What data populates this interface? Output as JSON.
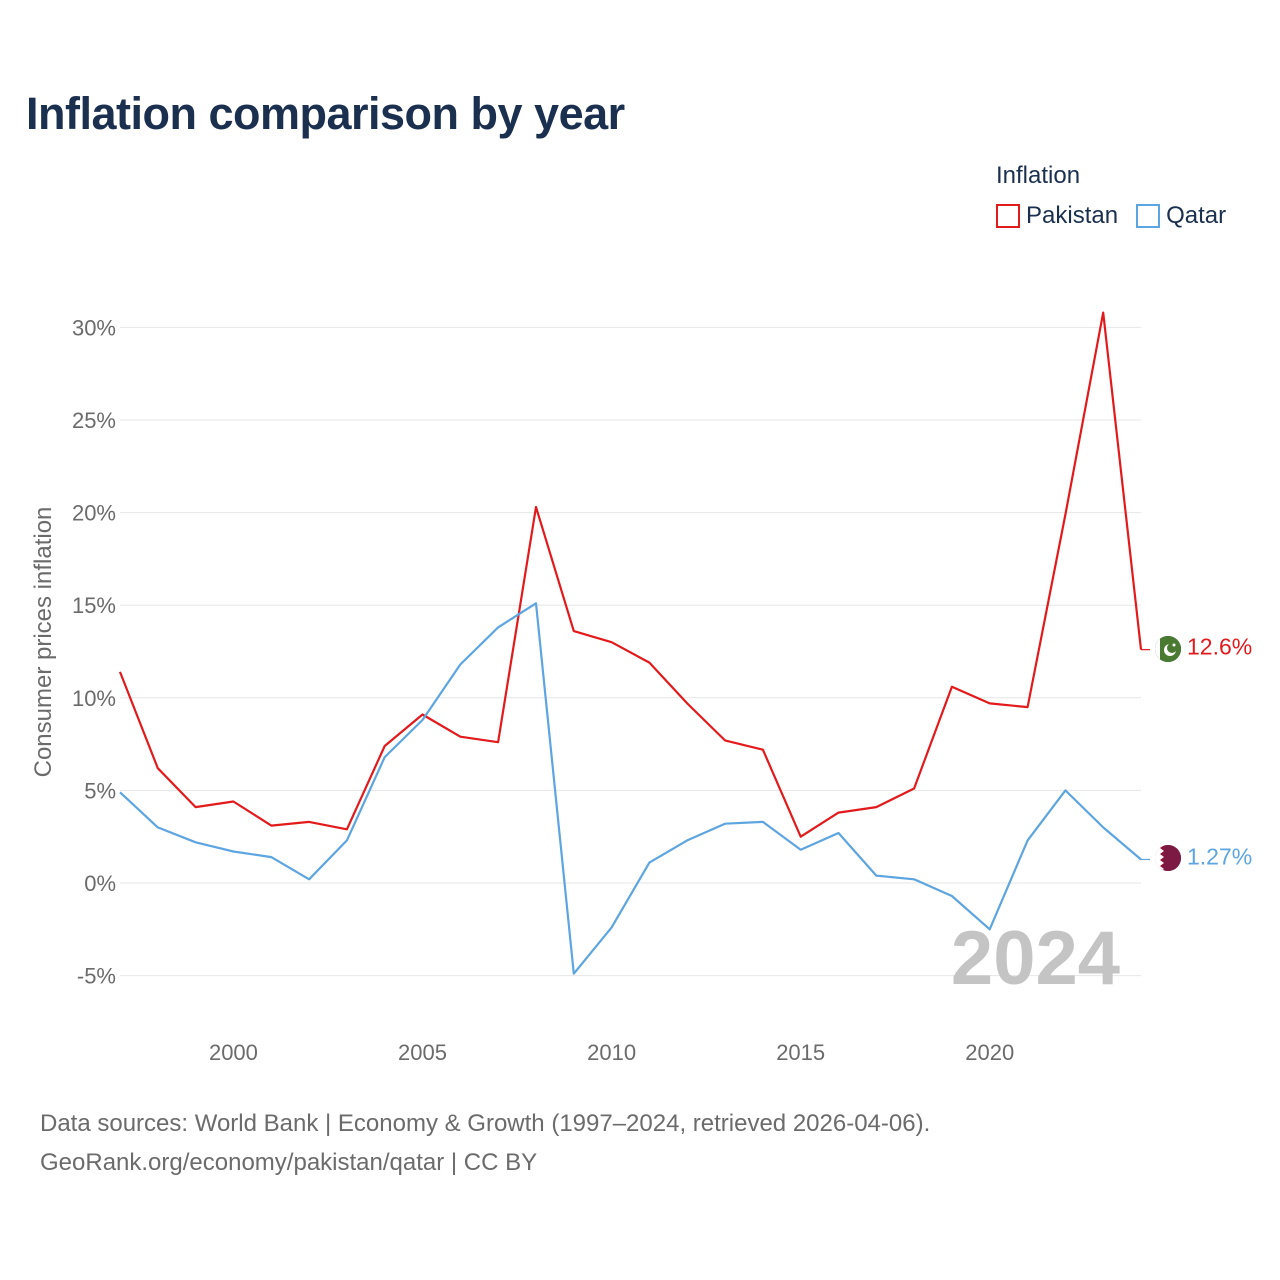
{
  "title": "Inflation comparison by year",
  "legend": {
    "title": "Inflation",
    "items": [
      {
        "label": "Pakistan",
        "color": "#e31a1c"
      },
      {
        "label": "Qatar",
        "color": "#5da5e0"
      }
    ]
  },
  "chart_data": {
    "type": "line",
    "ylabel": "Consumer prices inflation",
    "xlabel": "",
    "x": [
      1997,
      1998,
      1999,
      2000,
      2001,
      2002,
      2003,
      2004,
      2005,
      2006,
      2007,
      2008,
      2009,
      2010,
      2011,
      2012,
      2013,
      2014,
      2015,
      2016,
      2017,
      2018,
      2019,
      2020,
      2021,
      2022,
      2023,
      2024
    ],
    "xlim": [
      1997,
      2024
    ],
    "ylim": [
      -5.5,
      31
    ],
    "xticks": [
      2000,
      2005,
      2010,
      2015,
      2020
    ],
    "yticks": [
      -5,
      0,
      5,
      10,
      15,
      20,
      25,
      30
    ],
    "ytick_labels": [
      "-5%",
      "0%",
      "5%",
      "10%",
      "15%",
      "20%",
      "25%",
      "30%"
    ],
    "grid": true,
    "year_watermark": "2024",
    "series": [
      {
        "name": "Pakistan",
        "color": "#e31a1c",
        "end_label": "12.6%",
        "values": [
          11.4,
          6.2,
          4.1,
          4.4,
          3.1,
          3.3,
          2.9,
          7.4,
          9.1,
          7.9,
          7.6,
          20.3,
          13.6,
          13.0,
          11.9,
          9.7,
          7.7,
          7.2,
          2.5,
          3.8,
          4.1,
          5.1,
          10.6,
          9.7,
          9.5,
          19.9,
          30.8,
          12.6
        ]
      },
      {
        "name": "Qatar",
        "color": "#5da5e0",
        "end_label": "1.27%",
        "values": [
          4.9,
          3.0,
          2.2,
          1.7,
          1.4,
          0.2,
          2.3,
          6.8,
          8.8,
          11.8,
          13.8,
          15.1,
          -4.9,
          -2.4,
          1.1,
          2.3,
          3.2,
          3.3,
          1.8,
          2.7,
          0.4,
          0.2,
          -0.7,
          -2.5,
          2.3,
          5.0,
          3.0,
          1.27
        ]
      }
    ]
  },
  "source": {
    "line1": "Data sources: World Bank | Economy & Growth (1997–2024, retrieved 2026-04-06).",
    "line2": "GeoRank.org/economy/pakistan/qatar | CC BY"
  }
}
